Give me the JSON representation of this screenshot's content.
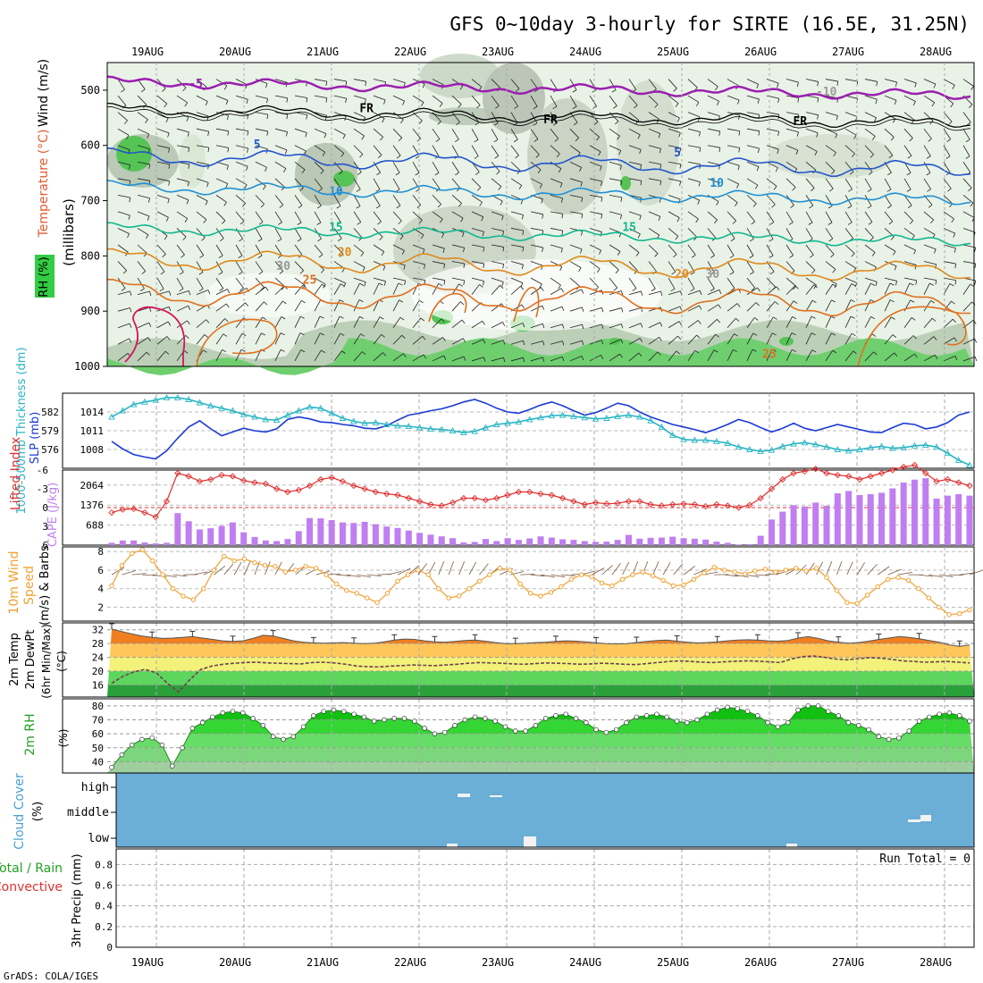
{
  "chart_data": [
    {
      "panel": "upper-air",
      "type": "contour",
      "title": "GFS 0~10day 3-hourly for SIRTE (16.5E, 31.25N)",
      "dates": [
        "19AUG",
        "20AUG",
        "21AUG",
        "22AUG",
        "23AUG",
        "24AUG",
        "25AUG",
        "26AUG",
        "27AUG",
        "28AUG"
      ],
      "ylabel_main": "(millibars)",
      "ylabel_wind": "Wind (m/s)",
      "ylabel_temp": "Temperature (°C)",
      "ylabel_rh": "RH (%)",
      "yticks": [
        500,
        600,
        700,
        800,
        900,
        1000
      ],
      "ylim": [
        450,
        1000
      ],
      "contour_labels": [
        {
          "text": "-5",
          "d": 0.45,
          "p": 495,
          "color": "#9b1fb0"
        },
        {
          "text": "FR",
          "d": 2.4,
          "p": 540,
          "color": "#000000"
        },
        {
          "text": "FR",
          "d": 4.5,
          "p": 560,
          "color": "#000000"
        },
        {
          "text": "FR",
          "d": 7.35,
          "p": 563,
          "color": "#000000"
        },
        {
          "text": "5",
          "d": 1.15,
          "p": 605,
          "color": "#2255cc"
        },
        {
          "text": "5",
          "d": 5.95,
          "p": 620,
          "color": "#2255cc"
        },
        {
          "text": "10",
          "d": 2.05,
          "p": 690,
          "color": "#1e90d6"
        },
        {
          "text": "10",
          "d": 6.4,
          "p": 675,
          "color": "#1e90d6"
        },
        {
          "text": "15",
          "d": 2.05,
          "p": 755,
          "color": "#10b890"
        },
        {
          "text": "15",
          "d": 5.4,
          "p": 755,
          "color": "#10b890"
        },
        {
          "text": "20",
          "d": 2.15,
          "p": 800,
          "color": "#e08a1e"
        },
        {
          "text": "20",
          "d": 6.0,
          "p": 840,
          "color": "#e08a1e"
        },
        {
          "text": "25",
          "d": 1.75,
          "p": 850,
          "color": "#e0701e"
        },
        {
          "text": "-10",
          "d": 7.65,
          "p": 510,
          "color": "#999999"
        },
        {
          "text": "30",
          "d": 1.45,
          "p": 825,
          "color": "#999999"
        },
        {
          "text": "30",
          "d": 6.35,
          "p": 840,
          "color": "#999999"
        },
        {
          "text": "25",
          "d": 7.0,
          "p": 985,
          "color": "#e0701e"
        }
      ]
    },
    {
      "panel": "slp-thickness",
      "type": "line",
      "ylabel_left": "1000-500mb Thickness (dm)",
      "ylabel_right": "SLP (mb)",
      "left_ticks": [
        "582",
        "579",
        "576"
      ],
      "right_ticks": [
        "1014",
        "1011",
        "1008"
      ],
      "series": [
        {
          "name": "SLP (mb)",
          "color": "#1a3bd4",
          "values": [
            1009.3,
            1008.1,
            1007.2,
            1006.8,
            1006.5,
            1007.8,
            1009.8,
            1011.6,
            1012.6,
            1011.3,
            1010.2,
            1010.8,
            1011.4,
            1011.0,
            1010.8,
            1011.3,
            1012.8,
            1013.2,
            1012.9,
            1012.4,
            1012.3,
            1012.0,
            1011.8,
            1011.4,
            1011.3,
            1011.8,
            1012.7,
            1013.5,
            1013.8,
            1014.2,
            1014.5,
            1015.0,
            1015.6,
            1016.0,
            1015.4,
            1014.6,
            1014.0,
            1013.8,
            1014.4,
            1015.1,
            1015.6,
            1015.0,
            1014.2,
            1013.5,
            1013.9,
            1014.6,
            1015.4,
            1015.0,
            1014.0,
            1013.2,
            1012.6,
            1012.0,
            1011.6,
            1011.2,
            1010.7,
            1011.3,
            1012.0,
            1012.8,
            1012.3,
            1011.5,
            1010.8,
            1011.4,
            1012.2,
            1011.4,
            1011.0,
            1011.5,
            1012.0,
            1011.6,
            1011.2,
            1010.8,
            1010.7,
            1011.5,
            1012.2,
            1012.0,
            1011.3,
            1011.6,
            1012.3,
            1013.5,
            1014.0
          ]
        },
        {
          "name": "Thickness (dm)",
          "color": "#2ab5c4",
          "values": [
            1013.2,
            1014.2,
            1015.2,
            1015.6,
            1015.9,
            1016.3,
            1016.3,
            1016.0,
            1015.5,
            1015.0,
            1014.6,
            1014.2,
            1013.6,
            1013.2,
            1012.8,
            1012.7,
            1013.5,
            1014.2,
            1014.8,
            1014.6,
            1013.8,
            1013.0,
            1012.5,
            1012.2,
            1012.3,
            1012.0,
            1011.8,
            1011.7,
            1011.5,
            1011.3,
            1011.2,
            1011.0,
            1010.7,
            1010.9,
            1011.5,
            1012.0,
            1012.2,
            1012.4,
            1012.8,
            1013.1,
            1013.4,
            1013.5,
            1013.3,
            1013.1,
            1012.9,
            1013.0,
            1013.3,
            1013.5,
            1013.2,
            1012.6,
            1011.6,
            1010.3,
            1009.6,
            1009.5,
            1009.5,
            1009.3,
            1009.0,
            1008.4,
            1008.0,
            1007.7,
            1007.9,
            1008.5,
            1008.9,
            1009.1,
            1008.8,
            1008.4,
            1008.0,
            1007.8,
            1008.0,
            1008.3,
            1008.5,
            1008.2,
            1008.3,
            1008.6,
            1008.7,
            1008.4,
            1007.4,
            1006.3,
            1005.5
          ]
        }
      ]
    },
    {
      "panel": "cape-li",
      "type": "bar+line",
      "ylabel_left": "Lifted Index",
      "ylabel_right": "CAPE (J/kg)",
      "li_ticks": [
        "-6",
        "-3",
        "0",
        "3",
        "6"
      ],
      "cape_ticks": [
        "2064",
        "1376",
        "688"
      ],
      "cape": [
        80,
        160,
        160,
        90,
        60,
        80,
        1100,
        820,
        540,
        580,
        660,
        780,
        440,
        280,
        160,
        140,
        210,
        480,
        930,
        920,
        860,
        780,
        760,
        800,
        720,
        640,
        590,
        500,
        420,
        360,
        300,
        240,
        90,
        110,
        210,
        140,
        240,
        180,
        230,
        300,
        260,
        200,
        180,
        140,
        110,
        120,
        180,
        350,
        220,
        250,
        260,
        290,
        240,
        220,
        190,
        120,
        80,
        20,
        30,
        320,
        880,
        1150,
        1370,
        1330,
        1460,
        1350,
        1780,
        1860,
        1720,
        1750,
        1800,
        1950,
        2150,
        2250,
        2300,
        1600,
        1700,
        1750,
        1700
      ],
      "lifted_index": [
        0.8,
        0.3,
        0.2,
        0.8,
        1.5,
        -1.0,
        -5.5,
        -5.0,
        -4.2,
        -4.5,
        -5.2,
        -5.0,
        -4.3,
        -4.0,
        -3.8,
        -3.0,
        -2.5,
        -2.8,
        -3.5,
        -4.5,
        -4.8,
        -4.2,
        -3.5,
        -3.0,
        -2.5,
        -2.2,
        -2.0,
        -1.5,
        -1.0,
        -0.5,
        -0.3,
        -0.8,
        -1.5,
        -1.5,
        -1.2,
        -1.5,
        -2.0,
        -2.5,
        -2.5,
        -2.2,
        -2.0,
        -1.5,
        -1.0,
        -0.5,
        -0.8,
        -0.6,
        -0.7,
        -1.0,
        -1.0,
        -0.5,
        -0.3,
        -0.5,
        -0.6,
        -0.5,
        -0.2,
        -0.5,
        -0.3,
        0.0,
        -0.4,
        -1.5,
        -3.0,
        -4.5,
        -5.5,
        -5.8,
        -6.2,
        -5.5,
        -5.2,
        -5.0,
        -4.5,
        -5.0,
        -5.5,
        -6.0,
        -6.5,
        -6.8,
        -5.5,
        -4.2,
        -4.5,
        -4.0,
        -3.5
      ]
    },
    {
      "panel": "wind-10m",
      "type": "line",
      "ylabel": "10m Wind Speed (m/s) & Barbs",
      "yticks": [
        "8",
        "6",
        "4",
        "2"
      ],
      "ylim": [
        0.5,
        8.5
      ],
      "speed": [
        4.3,
        6.5,
        7.8,
        8.2,
        7.0,
        5.5,
        4.0,
        3.2,
        2.8,
        4.0,
        6.0,
        7.5,
        7.0,
        7.2,
        6.8,
        6.5,
        6.4,
        5.8,
        6.0,
        6.4,
        6.2,
        5.5,
        4.5,
        3.8,
        3.5,
        3.0,
        2.5,
        3.5,
        4.8,
        5.5,
        6.0,
        5.5,
        4.0,
        3.0,
        3.2,
        4.0,
        4.8,
        5.5,
        6.2,
        6.0,
        4.5,
        3.5,
        3.2,
        3.6,
        4.2,
        5.0,
        5.5,
        5.3,
        4.6,
        4.3,
        5.0,
        5.5,
        5.8,
        5.4,
        4.9,
        4.3,
        4.4,
        5.0,
        5.7,
        6.3,
        6.0,
        5.8,
        5.6,
        5.9,
        6.1,
        5.8,
        6.0,
        6.2,
        5.9,
        6.2,
        5.2,
        3.8,
        2.5,
        2.4,
        3.3,
        4.2,
        5.0,
        5.2,
        4.9,
        4.0,
        3.0,
        2.0,
        1.2,
        1.3,
        1.7
      ]
    },
    {
      "panel": "temp-2m",
      "type": "area",
      "ylabel": "2m Temp 2m DewPt (6hr Min/Max) (°C)",
      "yticks": [
        "32",
        "28",
        "24",
        "20",
        "16"
      ],
      "ylim": [
        12.5,
        34
      ],
      "temp": [
        32.2,
        31.5,
        30.8,
        30.2,
        29.8,
        29.5,
        29.6,
        29.8,
        30.0,
        29.6,
        29.2,
        28.8,
        28.6,
        28.8,
        29.5,
        30.4,
        30.2,
        29.5,
        28.8,
        28.4,
        28.2,
        28.1,
        28.2,
        28.3,
        28.1,
        28.0,
        28.1,
        28.5,
        29.0,
        29.3,
        29.2,
        28.8,
        28.5,
        28.4,
        28.6,
        28.9,
        29.0,
        28.7,
        28.3,
        28.0,
        28.0,
        28.1,
        28.3,
        28.4,
        28.6,
        28.8,
        28.7,
        28.5,
        28.2,
        28.0,
        27.9,
        28.0,
        28.3,
        28.6,
        28.9,
        29.0,
        28.7,
        28.4,
        28.2,
        28.3,
        28.5,
        28.8,
        29.0,
        29.1,
        29.0,
        28.8,
        28.7,
        28.9,
        29.6,
        30.0,
        29.5,
        28.8,
        28.4,
        28.1,
        28.3,
        28.7,
        29.2,
        29.6,
        30.0,
        29.8,
        29.4,
        28.9,
        28.4,
        27.6,
        27.2,
        27.6
      ],
      "dewpoint": [
        16.5,
        18.5,
        19.8,
        20.5,
        19.5,
        16.5,
        14.0,
        17.5,
        20.5,
        21.5,
        22.0,
        22.3,
        22.5,
        22.6,
        22.4,
        22.3,
        22.2,
        22.1,
        22.5,
        22.6,
        22.4,
        22.0,
        21.5,
        21.3,
        21.2,
        21.5,
        21.6,
        21.8,
        21.7,
        21.6,
        21.8,
        22.0,
        22.3,
        22.5,
        22.4,
        22.3,
        22.1,
        22.0,
        22.2,
        22.4,
        22.3,
        22.2,
        22.0,
        22.1,
        22.3,
        22.2,
        22.0,
        21.9,
        22.2,
        22.5,
        22.8,
        23.0,
        22.8,
        22.6,
        22.5,
        22.7,
        22.9,
        23.0,
        22.9,
        22.7,
        22.5,
        23.5,
        24.2,
        24.4,
        24.0,
        23.5,
        23.3,
        23.6,
        23.9,
        23.8,
        23.4,
        23.0,
        22.8,
        22.6,
        22.7,
        22.8,
        22.6,
        22.4
      ]
    },
    {
      "panel": "rh-2m",
      "type": "area",
      "ylabel": "2m RH (%)",
      "yticks": [
        "80",
        "70",
        "60",
        "50",
        "40"
      ],
      "ylim": [
        32,
        85
      ],
      "rh": [
        36,
        45,
        52,
        56,
        57,
        52,
        37,
        50,
        64,
        68,
        72,
        75,
        76,
        75,
        71,
        66,
        58,
        56,
        58,
        65,
        73,
        76,
        77,
        76,
        74,
        72,
        69,
        70,
        71,
        71,
        69,
        64,
        60,
        61,
        66,
        70,
        72,
        71,
        69,
        65,
        62,
        62,
        66,
        71,
        73,
        74,
        71,
        68,
        63,
        61,
        63,
        68,
        72,
        73,
        74,
        72,
        69,
        68,
        70,
        74,
        77,
        79,
        78,
        76,
        73,
        68,
        65,
        68,
        77,
        80,
        80,
        76,
        73,
        68,
        66,
        63,
        58,
        56,
        57,
        62,
        69,
        72,
        74,
        75,
        73,
        69
      ]
    },
    {
      "panel": "cloud-cover",
      "type": "heatmap",
      "ylabel": "Cloud Cover (%)",
      "levels": [
        "high",
        "middle",
        "low"
      ]
    },
    {
      "panel": "precip",
      "type": "bar",
      "ylabel": "3hr Precip (mm)",
      "legend_left": "Total / Rain",
      "legend_convective": "Convective",
      "run_total": "Run Total = 0",
      "yticks": [
        "0.8",
        "0.6",
        "0.4",
        "0.2",
        "0"
      ],
      "ylim": [
        0,
        0.95
      ],
      "values": []
    }
  ],
  "footer": {
    "credit": "GrADS: COLA/IGES"
  },
  "colors": {
    "slp": "#1a3bd4",
    "thickness": "#2ab5c4",
    "cape": "#c07ef0",
    "li": "#e03030",
    "wind": "#f0a030",
    "rh_green": "#22c63a",
    "cloud": "#6baed6",
    "temp_orange": "#f07f20"
  }
}
